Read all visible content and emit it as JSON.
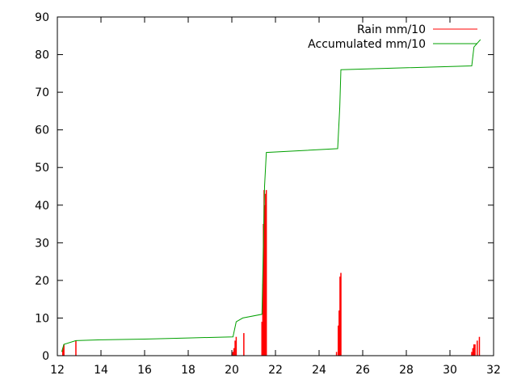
{
  "chart_data": {
    "type": "bar+line",
    "title": "",
    "xlabel": "",
    "ylabel": "",
    "xlim": [
      12,
      32
    ],
    "ylim": [
      0,
      90
    ],
    "x_ticks": [
      12,
      14,
      16,
      18,
      20,
      22,
      24,
      26,
      28,
      30,
      32
    ],
    "y_ticks": [
      0,
      10,
      20,
      30,
      40,
      50,
      60,
      70,
      80,
      90
    ],
    "grid": false,
    "legend_position": "top-right",
    "series": [
      {
        "name": "Rain mm/10",
        "kind": "impulse",
        "color": "#ff0000",
        "points": [
          [
            12.25,
            2
          ],
          [
            12.3,
            3
          ],
          [
            12.85,
            4
          ],
          [
            20.05,
            1
          ],
          [
            20.1,
            2
          ],
          [
            20.15,
            4
          ],
          [
            20.2,
            5
          ],
          [
            20.55,
            6
          ],
          [
            21.38,
            9
          ],
          [
            21.42,
            19
          ],
          [
            21.45,
            35
          ],
          [
            21.48,
            44
          ],
          [
            21.52,
            40
          ],
          [
            21.55,
            43
          ],
          [
            21.58,
            44
          ],
          [
            24.8,
            1
          ],
          [
            24.88,
            8
          ],
          [
            24.92,
            12
          ],
          [
            24.96,
            21
          ],
          [
            25.0,
            22
          ],
          [
            31.0,
            1
          ],
          [
            31.05,
            2
          ],
          [
            31.1,
            3
          ],
          [
            31.15,
            3
          ],
          [
            31.25,
            4
          ],
          [
            31.35,
            5
          ]
        ]
      },
      {
        "name": "Accumulated mm/10",
        "kind": "line",
        "color": "#00a000",
        "points": [
          [
            12.2,
            1
          ],
          [
            12.3,
            3
          ],
          [
            12.85,
            4
          ],
          [
            14,
            4.2
          ],
          [
            16,
            4.4
          ],
          [
            18,
            4.7
          ],
          [
            20.05,
            5
          ],
          [
            20.2,
            9
          ],
          [
            20.5,
            10
          ],
          [
            21.38,
            11
          ],
          [
            21.45,
            30
          ],
          [
            21.5,
            45
          ],
          [
            21.58,
            54
          ],
          [
            24.85,
            55
          ],
          [
            24.95,
            66
          ],
          [
            25.0,
            76
          ],
          [
            31.0,
            77
          ],
          [
            31.1,
            82
          ],
          [
            31.4,
            84
          ]
        ]
      }
    ]
  }
}
